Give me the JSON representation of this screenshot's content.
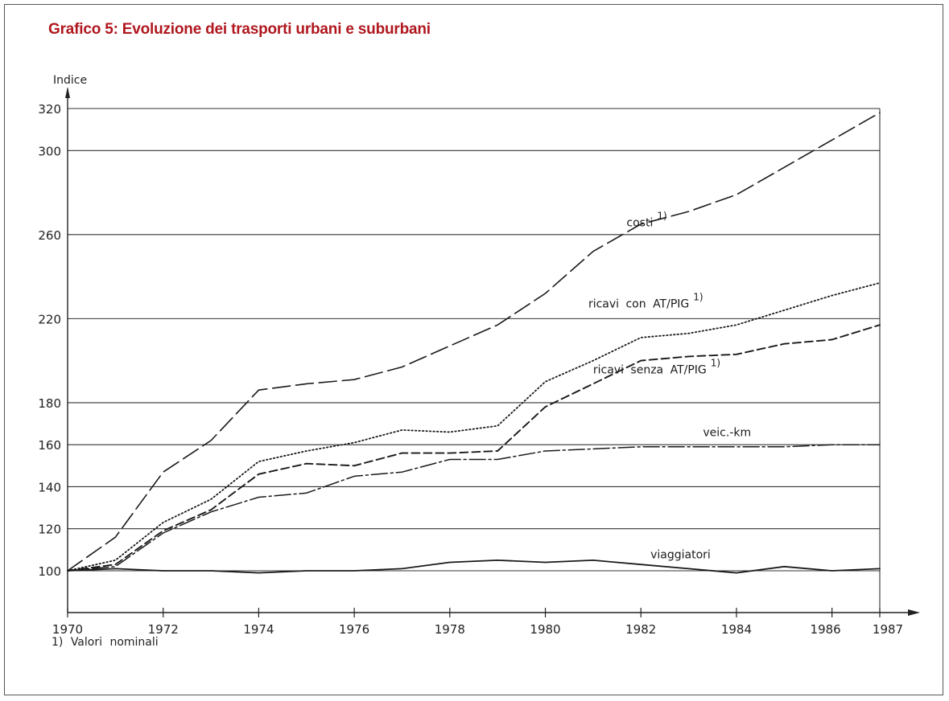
{
  "title": "Grafico 5: Evoluzione dei trasporti urbani e suburbani",
  "footnote": "1) Valori nominali",
  "chart_data": {
    "type": "line",
    "title": "Grafico 5: Evoluzione dei trasporti urbani e suburbani",
    "ylabel": "Indice",
    "xlabel": "",
    "ylim": [
      90,
      320
    ],
    "xlim": [
      1970,
      1987
    ],
    "y_ticks": [
      100,
      120,
      140,
      160,
      180,
      220,
      260,
      300,
      320
    ],
    "x_ticks": [
      1970,
      1972,
      1974,
      1976,
      1978,
      1980,
      1982,
      1984,
      1986,
      1987
    ],
    "grid": "horizontal",
    "x": [
      1970,
      1971,
      1972,
      1973,
      1974,
      1975,
      1976,
      1977,
      1978,
      1979,
      1980,
      1981,
      1982,
      1983,
      1984,
      1985,
      1986,
      1987
    ],
    "series": [
      {
        "name": "costi 1)",
        "style": "long-dash",
        "label_text": "costi",
        "label_sup": "1)",
        "values": [
          100,
          116,
          147,
          162,
          186,
          189,
          191,
          197,
          207,
          217,
          232,
          252,
          265,
          271,
          279,
          292,
          305,
          318
        ]
      },
      {
        "name": "ricavi con AT/PIG 1)",
        "style": "dotted",
        "label_text": "ricavi con AT/PIG",
        "label_sup": "1)",
        "values": [
          100,
          105,
          123,
          134,
          152,
          157,
          161,
          167,
          166,
          169,
          190,
          200,
          211,
          213,
          217,
          224,
          231,
          237
        ]
      },
      {
        "name": "ricavi senza AT/PIG 1)",
        "style": "dashed",
        "label_text": "ricavi senza AT/PIG",
        "label_sup": "1)",
        "values": [
          100,
          103,
          119,
          129,
          146,
          151,
          150,
          156,
          156,
          157,
          178,
          189,
          200,
          202,
          203,
          208,
          210,
          217
        ]
      },
      {
        "name": "veic.-km",
        "style": "dash-dot",
        "label_text": "veic.-km",
        "label_sup": "",
        "values": [
          100,
          102,
          118,
          128,
          135,
          137,
          145,
          147,
          153,
          153,
          157,
          158,
          159,
          159,
          159,
          159,
          160,
          160
        ]
      },
      {
        "name": "viaggiatori",
        "style": "solid",
        "label_text": "viaggiatori",
        "label_sup": "",
        "values": [
          100,
          101,
          100,
          100,
          99,
          100,
          100,
          101,
          104,
          105,
          104,
          105,
          103,
          101,
          99,
          102,
          100,
          101
        ]
      }
    ]
  }
}
